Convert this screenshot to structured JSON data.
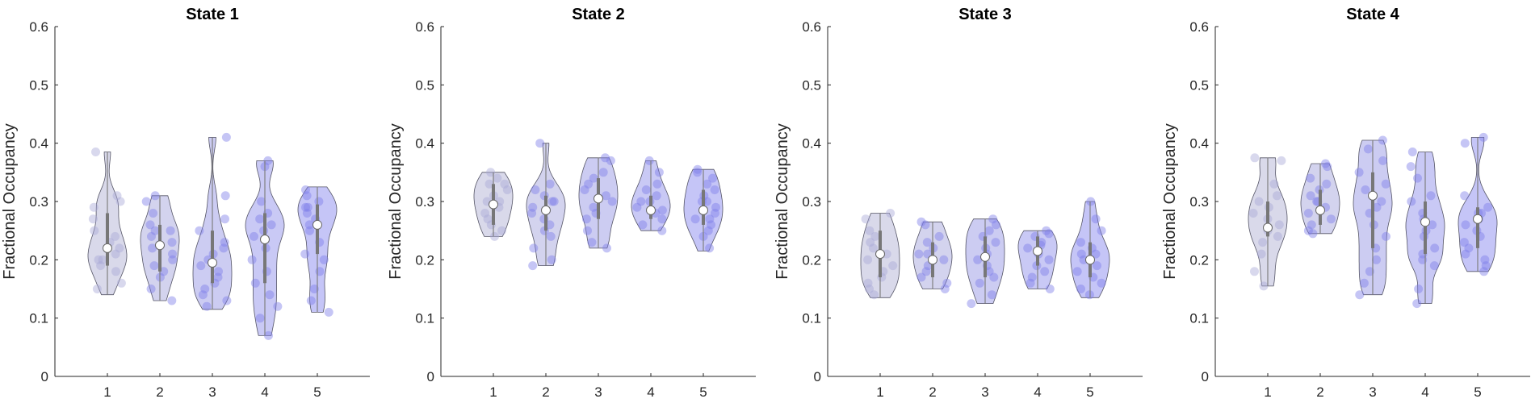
{
  "chart_data": [
    {
      "type": "violin",
      "title": "State 1",
      "ylabel": "Fractional Occupancy",
      "categories": [
        "1",
        "2",
        "3",
        "4",
        "5"
      ],
      "xlim": [
        0,
        6
      ],
      "ylim": [
        0,
        0.6
      ],
      "yticks": [
        "0",
        "0.1",
        "0.2",
        "0.3",
        "0.4",
        "0.5",
        "0.6"
      ],
      "grid": false,
      "groups": [
        {
          "name": "1",
          "median": 0.22,
          "q1": 0.19,
          "q3": 0.28,
          "min": 0.14,
          "max": 0.385,
          "color": "#b9b9d9",
          "points": [
            0.385,
            0.31,
            0.3,
            0.29,
            0.27,
            0.25,
            0.24,
            0.23,
            0.22,
            0.21,
            0.2,
            0.2,
            0.19,
            0.18,
            0.16,
            0.15
          ]
        },
        {
          "name": "2",
          "median": 0.225,
          "q1": 0.18,
          "q3": 0.26,
          "min": 0.13,
          "max": 0.31,
          "color": "#aeaee0",
          "points": [
            0.31,
            0.3,
            0.28,
            0.26,
            0.25,
            0.24,
            0.23,
            0.22,
            0.21,
            0.2,
            0.19,
            0.18,
            0.17,
            0.15,
            0.13,
            0.25
          ]
        },
        {
          "name": "3",
          "median": 0.195,
          "q1": 0.16,
          "q3": 0.25,
          "min": 0.115,
          "max": 0.41,
          "color": "#a3a3e8",
          "points": [
            0.41,
            0.31,
            0.27,
            0.25,
            0.23,
            0.22,
            0.2,
            0.19,
            0.17,
            0.16,
            0.15,
            0.14,
            0.13,
            0.12,
            0.21,
            0.18
          ]
        },
        {
          "name": "4",
          "median": 0.235,
          "q1": 0.16,
          "q3": 0.28,
          "min": 0.07,
          "max": 0.37,
          "color": "#9d9ded",
          "points": [
            0.37,
            0.36,
            0.3,
            0.28,
            0.27,
            0.26,
            0.24,
            0.22,
            0.2,
            0.18,
            0.16,
            0.14,
            0.12,
            0.1,
            0.07,
            0.25
          ]
        },
        {
          "name": "5",
          "median": 0.26,
          "q1": 0.21,
          "q3": 0.295,
          "min": 0.11,
          "max": 0.325,
          "color": "#9595f0",
          "points": [
            0.32,
            0.31,
            0.3,
            0.29,
            0.28,
            0.27,
            0.26,
            0.25,
            0.23,
            0.21,
            0.2,
            0.18,
            0.15,
            0.13,
            0.11,
            0.29
          ]
        }
      ]
    },
    {
      "type": "violin",
      "title": "State 2",
      "ylabel": "Fractional Occupancy",
      "categories": [
        "1",
        "2",
        "3",
        "4",
        "5"
      ],
      "xlim": [
        0,
        6
      ],
      "ylim": [
        0,
        0.6
      ],
      "yticks": [
        "0",
        "0.1",
        "0.2",
        "0.3",
        "0.4",
        "0.5",
        "0.6"
      ],
      "grid": false,
      "groups": [
        {
          "name": "1",
          "median": 0.295,
          "q1": 0.26,
          "q3": 0.33,
          "min": 0.24,
          "max": 0.35,
          "color": "#b9b9d9",
          "points": [
            0.35,
            0.34,
            0.33,
            0.32,
            0.31,
            0.3,
            0.29,
            0.28,
            0.27,
            0.26,
            0.25,
            0.24,
            0.3,
            0.33
          ]
        },
        {
          "name": "2",
          "median": 0.285,
          "q1": 0.25,
          "q3": 0.31,
          "min": 0.19,
          "max": 0.4,
          "color": "#aeaee0",
          "points": [
            0.4,
            0.33,
            0.32,
            0.31,
            0.3,
            0.29,
            0.28,
            0.27,
            0.26,
            0.25,
            0.24,
            0.22,
            0.2,
            0.19,
            0.3
          ]
        },
        {
          "name": "3",
          "median": 0.305,
          "q1": 0.27,
          "q3": 0.34,
          "min": 0.22,
          "max": 0.375,
          "color": "#a3a3e8",
          "points": [
            0.375,
            0.37,
            0.35,
            0.34,
            0.33,
            0.31,
            0.3,
            0.29,
            0.28,
            0.27,
            0.25,
            0.23,
            0.22,
            0.32
          ]
        },
        {
          "name": "4",
          "median": 0.285,
          "q1": 0.27,
          "q3": 0.31,
          "min": 0.25,
          "max": 0.37,
          "color": "#9d9ded",
          "points": [
            0.37,
            0.35,
            0.33,
            0.32,
            0.31,
            0.3,
            0.29,
            0.285,
            0.28,
            0.27,
            0.26,
            0.25,
            0.3
          ]
        },
        {
          "name": "5",
          "median": 0.285,
          "q1": 0.26,
          "q3": 0.32,
          "min": 0.215,
          "max": 0.355,
          "color": "#9595f0",
          "points": [
            0.355,
            0.35,
            0.34,
            0.33,
            0.32,
            0.31,
            0.3,
            0.29,
            0.28,
            0.27,
            0.26,
            0.25,
            0.24,
            0.22,
            0.3,
            0.27
          ]
        }
      ]
    },
    {
      "type": "violin",
      "title": "State 3",
      "ylabel": "Fractional Occupancy",
      "categories": [
        "1",
        "2",
        "3",
        "4",
        "5"
      ],
      "xlim": [
        0,
        6
      ],
      "ylim": [
        0,
        0.6
      ],
      "yticks": [
        "0",
        "0.1",
        "0.2",
        "0.3",
        "0.4",
        "0.5",
        "0.6"
      ],
      "grid": false,
      "groups": [
        {
          "name": "1",
          "median": 0.21,
          "q1": 0.17,
          "q3": 0.25,
          "min": 0.135,
          "max": 0.28,
          "color": "#b9b9d9",
          "points": [
            0.28,
            0.27,
            0.25,
            0.24,
            0.22,
            0.21,
            0.2,
            0.19,
            0.18,
            0.17,
            0.16,
            0.15,
            0.14,
            0.23
          ]
        },
        {
          "name": "2",
          "median": 0.2,
          "q1": 0.17,
          "q3": 0.23,
          "min": 0.15,
          "max": 0.265,
          "color": "#aeaee0",
          "points": [
            0.265,
            0.26,
            0.24,
            0.23,
            0.22,
            0.21,
            0.2,
            0.19,
            0.18,
            0.17,
            0.16,
            0.15,
            0.21
          ]
        },
        {
          "name": "3",
          "median": 0.205,
          "q1": 0.17,
          "q3": 0.24,
          "min": 0.125,
          "max": 0.27,
          "color": "#a3a3e8",
          "points": [
            0.27,
            0.26,
            0.25,
            0.24,
            0.22,
            0.21,
            0.2,
            0.19,
            0.18,
            0.17,
            0.16,
            0.14,
            0.125,
            0.23
          ]
        },
        {
          "name": "4",
          "median": 0.215,
          "q1": 0.19,
          "q3": 0.24,
          "min": 0.15,
          "max": 0.25,
          "color": "#9d9ded",
          "points": [
            0.25,
            0.245,
            0.24,
            0.23,
            0.22,
            0.21,
            0.2,
            0.19,
            0.18,
            0.17,
            0.16,
            0.15,
            0.225
          ]
        },
        {
          "name": "5",
          "median": 0.2,
          "q1": 0.17,
          "q3": 0.23,
          "min": 0.135,
          "max": 0.3,
          "color": "#9595f0",
          "points": [
            0.3,
            0.27,
            0.25,
            0.23,
            0.22,
            0.21,
            0.2,
            0.19,
            0.18,
            0.17,
            0.16,
            0.15,
            0.14,
            0.21
          ]
        }
      ]
    },
    {
      "type": "violin",
      "title": "State 4",
      "ylabel": "Fractional Occupancy",
      "categories": [
        "1",
        "2",
        "3",
        "4",
        "5"
      ],
      "xlim": [
        0,
        6
      ],
      "ylim": [
        0,
        0.6
      ],
      "yticks": [
        "0",
        "0.1",
        "0.2",
        "0.3",
        "0.4",
        "0.5",
        "0.6"
      ],
      "grid": false,
      "groups": [
        {
          "name": "1",
          "median": 0.255,
          "q1": 0.24,
          "q3": 0.3,
          "min": 0.155,
          "max": 0.375,
          "color": "#b9b9d9",
          "points": [
            0.375,
            0.37,
            0.33,
            0.31,
            0.3,
            0.28,
            0.27,
            0.26,
            0.25,
            0.24,
            0.23,
            0.21,
            0.18,
            0.155,
            0.29
          ]
        },
        {
          "name": "2",
          "median": 0.285,
          "q1": 0.26,
          "q3": 0.32,
          "min": 0.245,
          "max": 0.365,
          "color": "#aeaee0",
          "points": [
            0.365,
            0.36,
            0.34,
            0.33,
            0.32,
            0.31,
            0.3,
            0.29,
            0.28,
            0.27,
            0.26,
            0.25,
            0.245,
            0.3
          ]
        },
        {
          "name": "3",
          "median": 0.31,
          "q1": 0.22,
          "q3": 0.35,
          "min": 0.14,
          "max": 0.405,
          "color": "#a3a3e8",
          "points": [
            0.405,
            0.39,
            0.37,
            0.35,
            0.33,
            0.32,
            0.3,
            0.28,
            0.26,
            0.24,
            0.22,
            0.2,
            0.18,
            0.16,
            0.14,
            0.29
          ]
        },
        {
          "name": "4",
          "median": 0.265,
          "q1": 0.21,
          "q3": 0.3,
          "min": 0.125,
          "max": 0.385,
          "color": "#9d9ded",
          "points": [
            0.385,
            0.36,
            0.34,
            0.31,
            0.3,
            0.28,
            0.27,
            0.26,
            0.24,
            0.22,
            0.21,
            0.2,
            0.19,
            0.15,
            0.125,
            0.25
          ]
        },
        {
          "name": "5",
          "median": 0.27,
          "q1": 0.22,
          "q3": 0.29,
          "min": 0.18,
          "max": 0.41,
          "color": "#9595f0",
          "points": [
            0.41,
            0.4,
            0.31,
            0.29,
            0.28,
            0.27,
            0.26,
            0.25,
            0.24,
            0.23,
            0.22,
            0.21,
            0.2,
            0.19,
            0.18,
            0.28
          ]
        }
      ]
    }
  ]
}
